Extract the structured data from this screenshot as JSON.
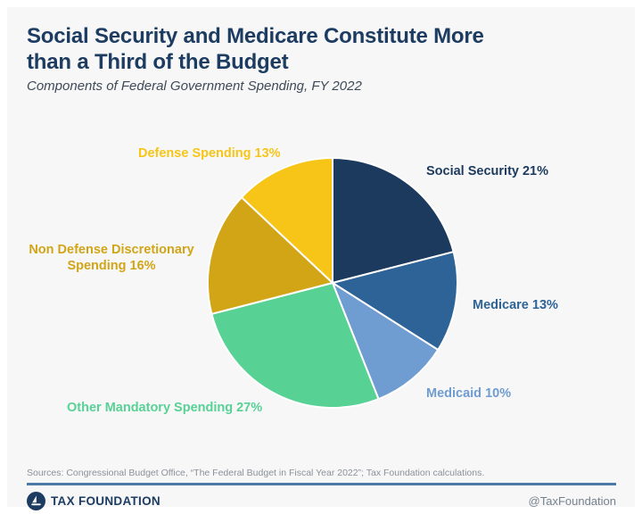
{
  "colors": {
    "card-bg": "#f7f7f8",
    "title-color": "#1d3c61",
    "subtitle-color": "#3e4a57",
    "sources-color": "#8b9199",
    "rule-color": "#4d7aa4",
    "handle-color": "#76828f",
    "slice-divider": "#ffffff"
  },
  "header": {
    "title_line1": "Social Security and Medicare Constitute More",
    "title_line2": "than a Third of the Budget",
    "subtitle": "Components of Federal Government Spending, FY 2022"
  },
  "chart_data": {
    "type": "pie",
    "title": "Social Security and Medicare Constitute More than a Third of the Budget",
    "subtitle": "Components of Federal Government Spending, FY 2022",
    "units": "percent of federal spending",
    "start_angle_deg": 0,
    "direction": "clockwise",
    "legend": "none (direct labels around pie)",
    "slices": [
      {
        "name": "Social Security",
        "value": 21,
        "color": "#1c3a5e",
        "label": "Social Security 21%"
      },
      {
        "name": "Medicare",
        "value": 13,
        "color": "#2d6396",
        "label": "Medicare 13%"
      },
      {
        "name": "Medicaid",
        "value": 10,
        "color": "#6f9cd1",
        "label": "Medicaid 10%"
      },
      {
        "name": "Other Mandatory Spending",
        "value": 27,
        "color": "#58d195",
        "label": "Other Mandatory Spending 27%"
      },
      {
        "name": "Non Defense Discretionary Spending",
        "value": 16,
        "color": "#d2a517",
        "label": "Non Defense Discretionary Spending 16%"
      },
      {
        "name": "Defense Spending",
        "value": 13,
        "color": "#f7c517",
        "label": "Defense Spending 13%"
      }
    ]
  },
  "footer": {
    "sources": "Sources: Congressional Budget Office, “The Federal Budget in Fiscal Year 2022”; Tax Foundation calculations.",
    "brand": "TAX FOUNDATION",
    "handle": "@TaxFoundation",
    "logo": "tax-foundation-circle-logo"
  }
}
